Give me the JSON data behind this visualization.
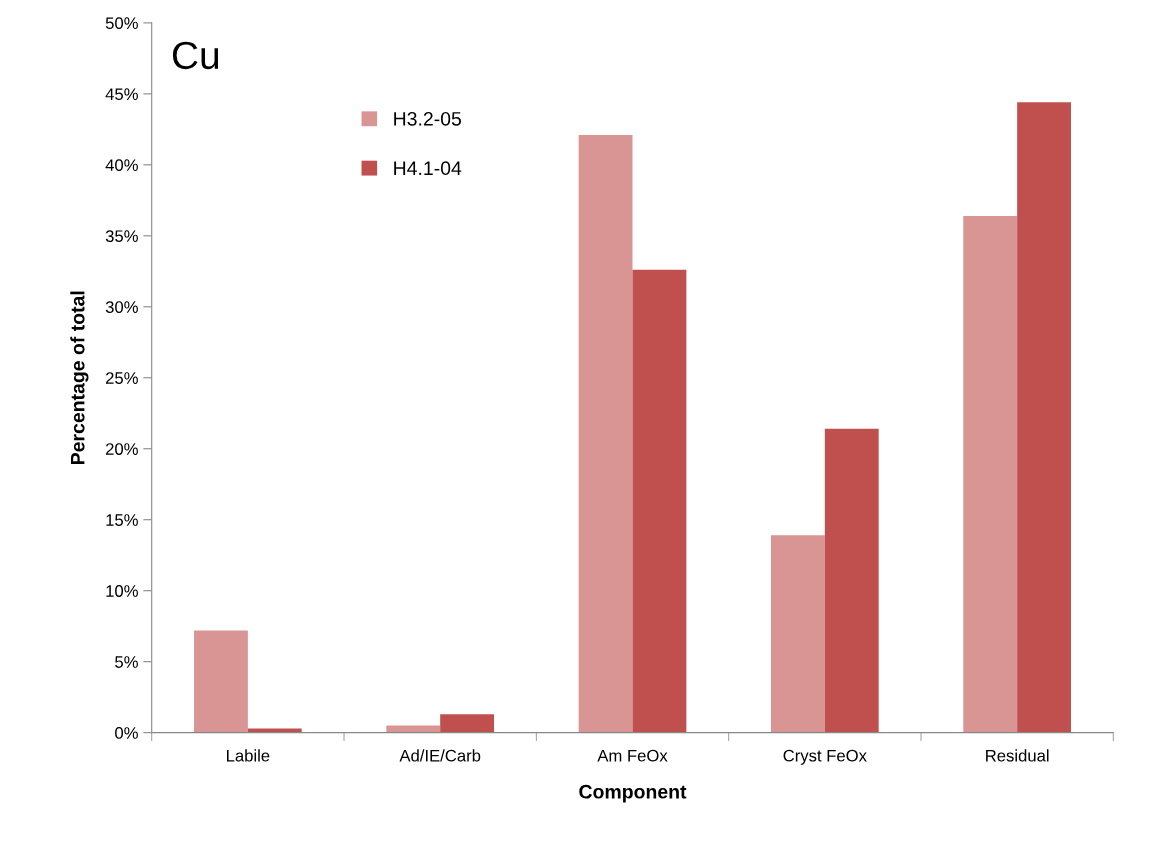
{
  "chart_data": {
    "type": "bar",
    "title": "Cu",
    "xlabel": "Component",
    "ylabel": "Percentage of total",
    "categories": [
      "Labile",
      "Ad/IE/Carb",
      "Am FeOx",
      "Cryst FeOx",
      "Residual"
    ],
    "series": [
      {
        "name": "H3.2-05",
        "color": "#d99594",
        "values": [
          7.2,
          0.5,
          42.1,
          13.9,
          36.4
        ]
      },
      {
        "name": "H4.1-04",
        "color": "#c0504d",
        "values": [
          0.3,
          1.3,
          32.6,
          21.4,
          44.4
        ]
      }
    ],
    "ylim": [
      0,
      50
    ],
    "yticks": [
      {
        "value": 0,
        "label": "0%"
      },
      {
        "value": 5,
        "label": "5%"
      },
      {
        "value": 10,
        "label": "10%"
      },
      {
        "value": 15,
        "label": "15%"
      },
      {
        "value": 20,
        "label": "20%"
      },
      {
        "value": 25,
        "label": "25%"
      },
      {
        "value": 30,
        "label": "30%"
      },
      {
        "value": 35,
        "label": "35%"
      },
      {
        "value": 40,
        "label": "40%"
      },
      {
        "value": 45,
        "label": "45%"
      },
      {
        "value": 50,
        "label": "50%"
      }
    ],
    "grid": false,
    "legend": "top left"
  }
}
